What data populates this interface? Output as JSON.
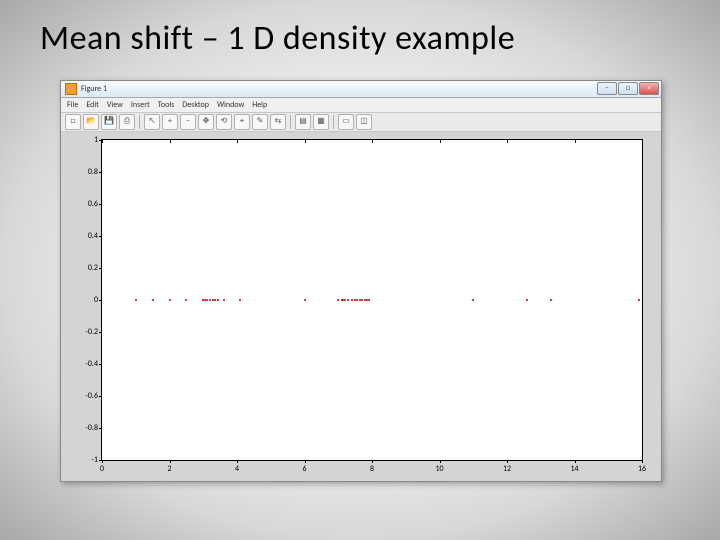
{
  "slide_title": "Mean shift – 1 D density example",
  "window": {
    "title": "Figure 1",
    "menus": [
      "File",
      "Edit",
      "View",
      "Insert",
      "Tools",
      "Desktop",
      "Window",
      "Help"
    ],
    "toolbar_icons": [
      "new",
      "open",
      "save",
      "print",
      "sep",
      "pointer",
      "zoom-in",
      "zoom-out",
      "pan",
      "rotate",
      "data-cursor",
      "brush",
      "link",
      "sep",
      "insert-colorbar",
      "insert-legend",
      "sep",
      "hide-plot-tools",
      "dock"
    ],
    "winbtn_min": "–",
    "winbtn_max": "□",
    "winbtn_close": "×"
  },
  "chart": {
    "type": "scatter",
    "background_color": "#ffffff",
    "axis_color": "#000000",
    "xlim": [
      0,
      16
    ],
    "ylim": [
      -1,
      1
    ],
    "xticks": [
      0,
      2,
      4,
      6,
      8,
      10,
      12,
      14,
      16
    ],
    "yticks": [
      -1,
      -0.8,
      -0.6,
      -0.4,
      -0.2,
      0,
      0.2,
      0.4,
      0.6,
      0.8,
      1
    ],
    "ytick_labels": [
      "-1",
      "-0.8",
      "-0.6",
      "-0.4",
      "-0.2",
      "0",
      "0.2",
      "0.4",
      "0.6",
      "0.8",
      "1"
    ],
    "tick_fontsize": 8,
    "marker_size": 2,
    "marker_color": "#cc0000",
    "points_x": [
      1.0,
      1.5,
      2.0,
      2.5,
      3.0,
      3.05,
      3.1,
      3.2,
      3.3,
      3.35,
      3.45,
      3.6,
      4.1,
      6.0,
      7.0,
      7.1,
      7.15,
      7.2,
      7.3,
      7.4,
      7.5,
      7.55,
      7.65,
      7.7,
      7.8,
      7.85,
      7.9,
      11.0,
      12.6,
      13.3,
      15.9
    ],
    "points_y": [
      0,
      0,
      0,
      0,
      0,
      0,
      0,
      0,
      0,
      0,
      0,
      0,
      0,
      0,
      0,
      0,
      0,
      0,
      0,
      0,
      0,
      0,
      0,
      0,
      0,
      0,
      0,
      0,
      0,
      0,
      0
    ]
  }
}
